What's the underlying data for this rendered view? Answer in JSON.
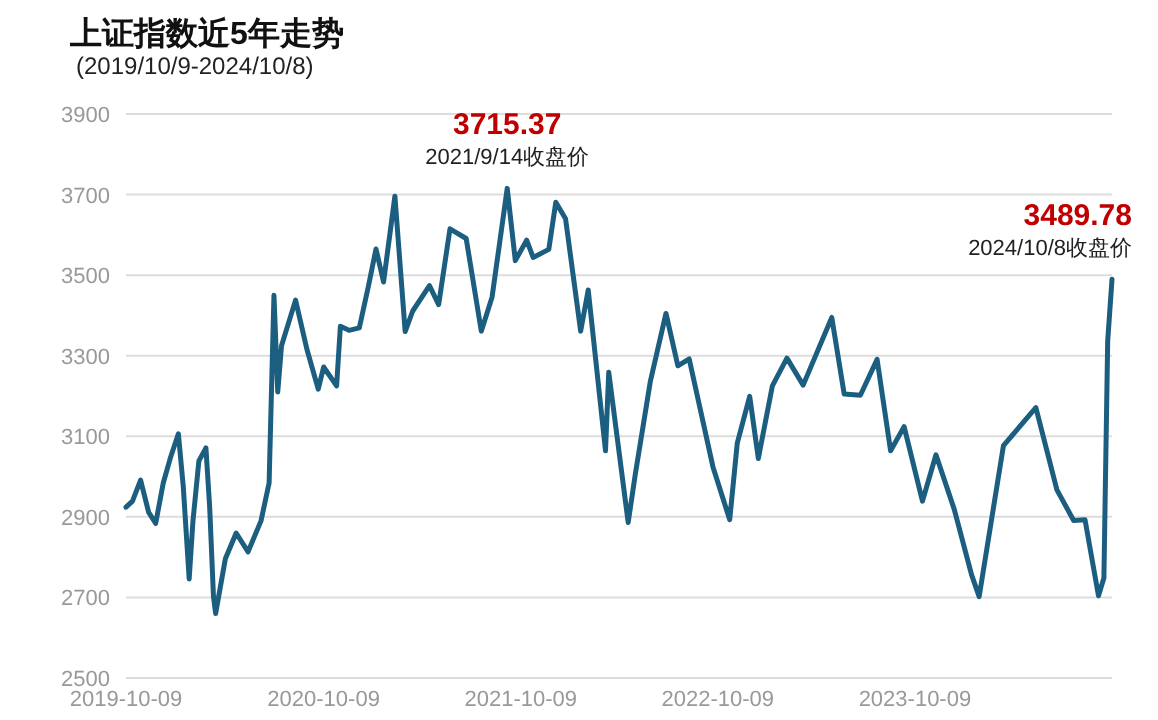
{
  "chart_data": {
    "type": "line",
    "title": "上证指数近5年走势",
    "subtitle": "(2019/10/9-2024/10/8)",
    "x": [
      "2019-10-09",
      "2019-10-21",
      "2019-11-05",
      "2019-11-20",
      "2019-12-03",
      "2019-12-17",
      "2019-12-31",
      "2020-01-14",
      "2020-01-23",
      "2020-02-03",
      "2020-02-10",
      "2020-02-21",
      "2020-03-05",
      "2020-03-12",
      "2020-03-19",
      "2020-03-23",
      "2020-04-10",
      "2020-04-30",
      "2020-05-22",
      "2020-06-15",
      "2020-06-30",
      "2020-07-09",
      "2020-07-16",
      "2020-07-23",
      "2020-08-18",
      "2020-09-08",
      "2020-09-29",
      "2020-10-09",
      "2020-11-02",
      "2020-11-09",
      "2020-11-25",
      "2020-12-14",
      "2020-12-31",
      "2021-01-14",
      "2021-01-28",
      "2021-02-18",
      "2021-03-09",
      "2021-03-23",
      "2021-04-23",
      "2021-05-10",
      "2021-05-31",
      "2021-06-30",
      "2021-07-28",
      "2021-08-17",
      "2021-09-14",
      "2021-09-29",
      "2021-10-20",
      "2021-11-01",
      "2021-11-30",
      "2021-12-13",
      "2021-12-31",
      "2022-01-28",
      "2022-02-11",
      "2022-03-15",
      "2022-03-21",
      "2022-04-26",
      "2022-05-09",
      "2022-06-06",
      "2022-07-05",
      "2022-07-27",
      "2022-08-17",
      "2022-09-30",
      "2022-10-31",
      "2022-11-14",
      "2022-12-07",
      "2022-12-23",
      "2023-01-18",
      "2023-02-14",
      "2023-03-16",
      "2023-05-08",
      "2023-05-31",
      "2023-06-30",
      "2023-07-31",
      "2023-08-25",
      "2023-09-19",
      "2023-10-23",
      "2023-11-17",
      "2023-12-21",
      "2024-01-22",
      "2024-02-05",
      "2024-03-21",
      "2024-05-20",
      "2024-06-28",
      "2024-07-29",
      "2024-08-19",
      "2024-09-13",
      "2024-09-23",
      "2024-09-30",
      "2024-10-08"
    ],
    "series": [
      {
        "color": "#1b5e80",
        "values": [
          2924,
          2939,
          2991,
          2911,
          2884,
          2984,
          3050,
          3106,
          2976,
          2746,
          2890,
          3039,
          3071,
          2923,
          2702,
          2660,
          2796,
          2860,
          2813,
          2890,
          2984,
          3450,
          3210,
          3325,
          3438,
          3316,
          3217,
          3272,
          3225,
          3373,
          3363,
          3369,
          3473,
          3565,
          3483,
          3696,
          3360,
          3411,
          3474,
          3427,
          3615,
          3591,
          3361,
          3446,
          3715.37,
          3536,
          3587,
          3544,
          3564,
          3681,
          3640,
          3361,
          3463,
          3064,
          3259,
          2886,
          3004,
          3236,
          3405,
          3275,
          3292,
          3024,
          2893,
          3083,
          3199,
          3045,
          3225,
          3294,
          3227,
          3395,
          3205,
          3202,
          3291,
          3064,
          3124,
          2939,
          3054,
          2918,
          2756,
          2702,
          3077,
          3171,
          2967,
          2891,
          2893,
          2704,
          2748,
          3336,
          3489.78
        ]
      }
    ],
    "ylim": [
      2500,
      3900
    ],
    "yticks": [
      2500,
      2700,
      2900,
      3100,
      3300,
      3500,
      3700,
      3900
    ],
    "xlim": [
      "2019-10-09",
      "2024-10-08"
    ],
    "xticks": [
      {
        "value": "2019-10-09",
        "label": "2019-10-09"
      },
      {
        "value": "2020-10-09",
        "label": "2020-10-09"
      },
      {
        "value": "2021-10-09",
        "label": "2021-10-09"
      },
      {
        "value": "2022-10-09",
        "label": "2022-10-09"
      },
      {
        "value": "2023-10-09",
        "label": "2023-10-09"
      }
    ],
    "grid": "y",
    "annotations": [
      {
        "text": "3715.37",
        "x": "2021-09-14",
        "y": 3715.37
      },
      {
        "text": "2021/9/14收盘价",
        "x": "2021-09-14",
        "y": 3715.37
      },
      {
        "text": "3489.78",
        "x": "2024-10-08",
        "y": 3489.78
      },
      {
        "text": "2024/10/8收盘价",
        "x": "2024-10-08",
        "y": 3489.78
      }
    ]
  }
}
